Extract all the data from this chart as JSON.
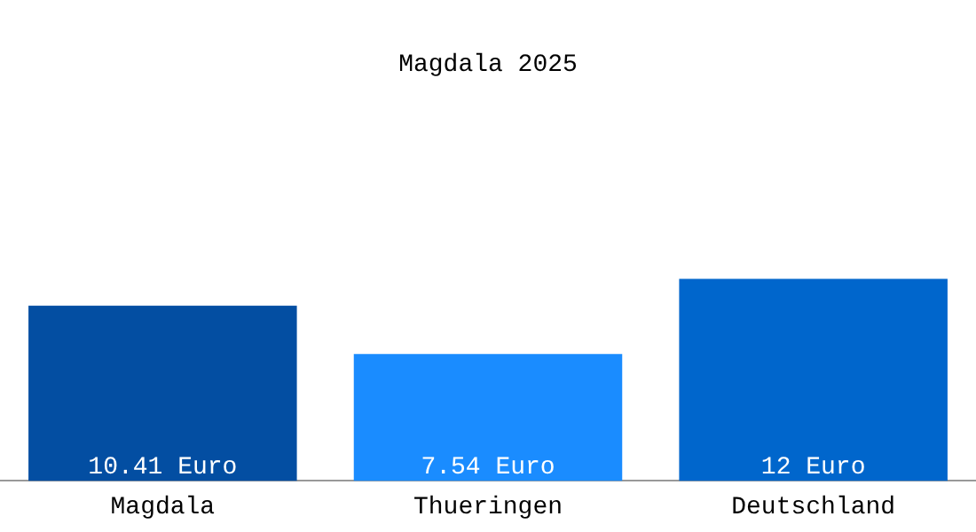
{
  "chart_data": {
    "type": "bar",
    "title": "Magdala 2025",
    "categories": [
      "Magdala",
      "Thueringen",
      "Deutschland"
    ],
    "values": [
      10.41,
      7.54,
      12
    ],
    "colors": [
      "#034ea2",
      "#1a8cff",
      "#0066cc"
    ],
    "value_labels": [
      "10.41 Euro",
      "7.54 Euro",
      "12 Euro"
    ],
    "grid": false,
    "legend": false
  }
}
